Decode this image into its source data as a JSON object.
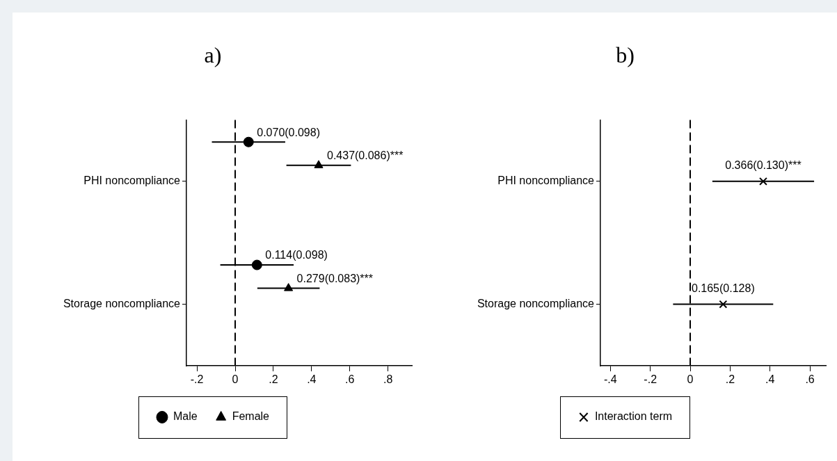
{
  "chart_data": [
    {
      "type": "scatter",
      "title": "a)",
      "orientation": "horizontal",
      "categories": [
        "PHI noncompliance",
        "Storage noncompliance"
      ],
      "series": [
        {
          "name": "Male",
          "color": "#000000",
          "marker": "circle",
          "values": [
            0.07,
            0.114
          ],
          "errors": [
            0.192,
            0.192
          ],
          "value_labels": [
            "0.070(0.098)",
            "0.114(0.098)"
          ]
        },
        {
          "name": "Female",
          "color": "#000000",
          "marker": "triangle",
          "values": [
            0.437,
            0.279
          ],
          "errors": [
            0.169,
            0.163
          ],
          "value_labels": [
            "0.437(0.086)***",
            "0.279(0.083)***"
          ]
        }
      ],
      "xlim": [
        -0.255,
        0.925
      ],
      "xticks": [
        {
          "value": -0.2,
          "label": "-.2"
        },
        0,
        {
          "value": 0.2,
          "label": ".2"
        },
        {
          "value": 0.4,
          "label": ".4"
        },
        {
          "value": 0.6,
          "label": ".6"
        },
        {
          "value": 0.8,
          "label": ".8"
        }
      ],
      "ref_lines": [
        {
          "axis": "x",
          "value": 0,
          "color": "#000000",
          "line_style": "dashed"
        }
      ],
      "legend": "bottom"
    },
    {
      "type": "scatter",
      "title": "b)",
      "orientation": "horizontal",
      "categories": [
        "PHI noncompliance",
        "Storage noncompliance"
      ],
      "series": [
        {
          "name": "Interaction term",
          "color": "#000000",
          "marker": "cross",
          "values": [
            0.366,
            0.165
          ],
          "errors": [
            0.255,
            0.251
          ],
          "value_labels": [
            "0.366(0.130)***",
            "0.165(0.128)"
          ]
        }
      ],
      "xlim": [
        -0.45,
        0.68
      ],
      "xticks": [
        {
          "value": -0.4,
          "label": "-.4"
        },
        {
          "value": -0.2,
          "label": "-.2"
        },
        0,
        {
          "value": 0.2,
          "label": ".2"
        },
        {
          "value": 0.4,
          "label": ".4"
        },
        {
          "value": 0.6,
          "label": ".6"
        }
      ],
      "ref_lines": [
        {
          "axis": "x",
          "value": 0,
          "color": "#000000",
          "line_style": "dashed"
        }
      ],
      "legend": "bottom"
    }
  ]
}
